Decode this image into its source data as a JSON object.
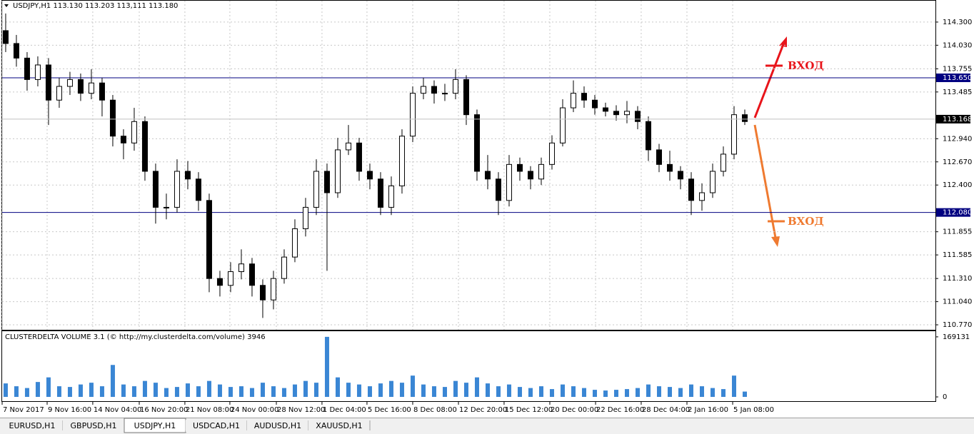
{
  "header": {
    "symbol_info": "USDJPY,H1  113.130 113.203 113,111 113.180"
  },
  "annotations": [
    "ВХОД",
    "ВХОД"
  ],
  "tabs": {
    "items": [
      "EURUSD,H1",
      "GBPUSD,H1",
      "USDJPY,H1",
      "USDCAD,H1",
      "AUDUSD,H1",
      "XAUUSD,H1"
    ],
    "active": "USDJPY,H1"
  },
  "chart_data": [
    {
      "type": "candlestick",
      "up_color": "#ffffff",
      "down_color": "#000000",
      "line_color": "#000000",
      "xlim": [
        -0.33,
        86.8
      ],
      "xticks": [
        {
          "value": -0.33,
          "label": "7 Nov 2017"
        },
        {
          "value": 3.87,
          "label": "9 Nov 16:00"
        },
        {
          "value": 8.13,
          "label": "14 Nov 04:00"
        },
        {
          "value": 12.47,
          "label": "16 Nov 20:00"
        },
        {
          "value": 16.73,
          "label": "21 Nov 08:00"
        },
        {
          "value": 20.93,
          "label": "24 Nov 00:00"
        },
        {
          "value": 25.27,
          "label": "28 Nov 12:00"
        },
        {
          "value": 29.53,
          "label": "1 Dec 04:00"
        },
        {
          "value": 33.73,
          "label": "5 Dec 16:00"
        },
        {
          "value": 38,
          "label": "8 Dec 08:00"
        },
        {
          "value": 42.27,
          "label": "12 Dec 20:00"
        },
        {
          "value": 46.53,
          "label": "15 Dec 12:00"
        },
        {
          "value": 50.8,
          "label": "20 Dec 00:00"
        },
        {
          "value": 55.07,
          "label": "22 Dec 16:00"
        },
        {
          "value": 59.33,
          "label": "28 Dec 04:00"
        },
        {
          "value": 63.6,
          "label": "2 Jan 16:00"
        },
        {
          "value": 67.87,
          "label": "5 Jan 08:00"
        }
      ],
      "ylim": [
        110.712,
        114.549
      ],
      "yticks": [
        {
          "value": 114.3,
          "label": "114.300"
        },
        {
          "value": 114.03,
          "label": "114.030"
        },
        {
          "value": 113.755,
          "label": "113.755"
        },
        {
          "value": 113.485,
          "label": "113.485"
        },
        {
          "value": 112.94,
          "label": "112.940"
        },
        {
          "value": 112.67,
          "label": "112.670"
        },
        {
          "value": 112.4,
          "label": "112.400"
        },
        {
          "value": 111.855,
          "label": "111.855"
        },
        {
          "value": 111.585,
          "label": "111.585"
        },
        {
          "value": 111.31,
          "label": "111.310"
        },
        {
          "value": 111.04,
          "label": "111.040"
        },
        {
          "value": 110.77,
          "label": "110.770"
        }
      ],
      "levels": [
        {
          "value": 113.65,
          "label": "113.650",
          "color": "#000080"
        },
        {
          "value": 112.08,
          "label": "112.080",
          "color": "#000080"
        }
      ],
      "current_price": {
        "value": 113.168,
        "label": "113.168",
        "color": "#000000"
      },
      "open": [
        114.2,
        114.05,
        113.88,
        113.63,
        113.8,
        113.39,
        113.55,
        113.63,
        113.47,
        113.59,
        113.39,
        112.97,
        112.89,
        113.14,
        112.56,
        112.14,
        112.14,
        112.56,
        112.47,
        112.22,
        111.31,
        111.23,
        111.39,
        111.48,
        111.23,
        111.06,
        111.31,
        111.56,
        111.89,
        112.14,
        112.56,
        112.31,
        112.81,
        112.89,
        112.56,
        112.47,
        112.14,
        112.39,
        112.97,
        113.47,
        113.55,
        113.47,
        113.47,
        113.63,
        113.22,
        112.56,
        112.47,
        112.22,
        112.64,
        112.56,
        112.47,
        112.64,
        112.89,
        113.3,
        113.47,
        113.39,
        113.3,
        113.26,
        113.22,
        113.26,
        113.14,
        112.81,
        112.64,
        112.56,
        112.47,
        112.22,
        112.31,
        112.56,
        112.76,
        113.22
      ],
      "high": [
        114.4,
        114.15,
        113.95,
        113.9,
        113.88,
        113.65,
        113.72,
        113.7,
        113.75,
        113.65,
        113.45,
        113.05,
        113.3,
        113.2,
        112.65,
        112.3,
        112.7,
        112.68,
        112.55,
        112.3,
        111.4,
        111.5,
        111.65,
        111.55,
        111.3,
        111.4,
        111.65,
        112.0,
        112.25,
        112.7,
        112.65,
        112.95,
        113.1,
        112.95,
        112.65,
        112.55,
        112.5,
        113.05,
        113.55,
        113.65,
        113.62,
        113.58,
        113.75,
        113.68,
        113.28,
        112.75,
        112.55,
        112.75,
        112.72,
        112.62,
        112.72,
        112.98,
        113.4,
        113.62,
        113.55,
        113.45,
        113.36,
        113.33,
        113.38,
        113.32,
        113.2,
        112.88,
        112.8,
        112.62,
        112.55,
        112.42,
        112.65,
        112.85,
        113.32,
        113.28
      ],
      "low": [
        113.95,
        113.78,
        113.5,
        113.55,
        113.1,
        113.3,
        113.45,
        113.38,
        113.4,
        113.2,
        112.85,
        112.7,
        112.8,
        112.45,
        111.95,
        112.0,
        112.08,
        112.35,
        112.1,
        111.15,
        111.1,
        111.15,
        111.3,
        111.1,
        110.85,
        110.95,
        111.25,
        111.5,
        111.8,
        112.05,
        111.4,
        112.25,
        112.75,
        112.45,
        112.35,
        112.05,
        112.05,
        112.3,
        112.9,
        113.4,
        113.35,
        113.38,
        113.4,
        113.1,
        112.45,
        112.35,
        112.05,
        112.15,
        112.45,
        112.35,
        112.4,
        112.58,
        112.85,
        113.25,
        113.3,
        113.22,
        113.2,
        113.15,
        113.12,
        113.05,
        112.68,
        112.55,
        112.45,
        112.35,
        112.05,
        112.1,
        112.25,
        112.5,
        112.7,
        113.1
      ],
      "close": [
        114.05,
        113.88,
        113.63,
        113.8,
        113.39,
        113.55,
        113.63,
        113.47,
        113.59,
        113.39,
        112.97,
        112.89,
        113.14,
        112.56,
        112.14,
        112.14,
        112.56,
        112.47,
        112.22,
        111.31,
        111.23,
        111.39,
        111.48,
        111.23,
        111.06,
        111.31,
        111.56,
        111.89,
        112.14,
        112.56,
        112.31,
        112.81,
        112.89,
        112.56,
        112.47,
        112.14,
        112.39,
        112.97,
        113.47,
        113.55,
        113.47,
        113.47,
        113.63,
        113.22,
        112.56,
        112.47,
        112.22,
        112.64,
        112.56,
        112.47,
        112.64,
        112.89,
        113.3,
        113.47,
        113.39,
        113.3,
        113.26,
        113.22,
        113.26,
        113.14,
        112.81,
        112.64,
        112.56,
        112.47,
        112.22,
        112.31,
        112.56,
        112.76,
        113.22,
        113.14
      ]
    },
    {
      "type": "bar",
      "title": "CLUSTERDELTA VOLUME 3.1 (© http://my.clusterdelta.com/volume) 3946",
      "color": "#3a86d4",
      "xlim": [
        -0.33,
        86.8
      ],
      "ylim": [
        -12000,
        185000
      ],
      "yticks": [
        169131,
        0
      ],
      "values": [
        38000,
        30000,
        25000,
        42000,
        55000,
        30000,
        28000,
        35000,
        40000,
        30000,
        90000,
        35000,
        30000,
        45000,
        40000,
        25000,
        28000,
        38000,
        30000,
        45000,
        35000,
        28000,
        30000,
        25000,
        40000,
        30000,
        25000,
        35000,
        45000,
        40000,
        169131,
        55000,
        40000,
        35000,
        30000,
        38000,
        45000,
        40000,
        60000,
        35000,
        30000,
        28000,
        45000,
        40000,
        55000,
        38000,
        30000,
        35000,
        28000,
        25000,
        30000,
        22000,
        35000,
        30000,
        25000,
        20000,
        18000,
        20000,
        22000,
        25000,
        35000,
        30000,
        28000,
        25000,
        35000,
        30000,
        25000,
        22000,
        60000,
        15000
      ]
    }
  ]
}
